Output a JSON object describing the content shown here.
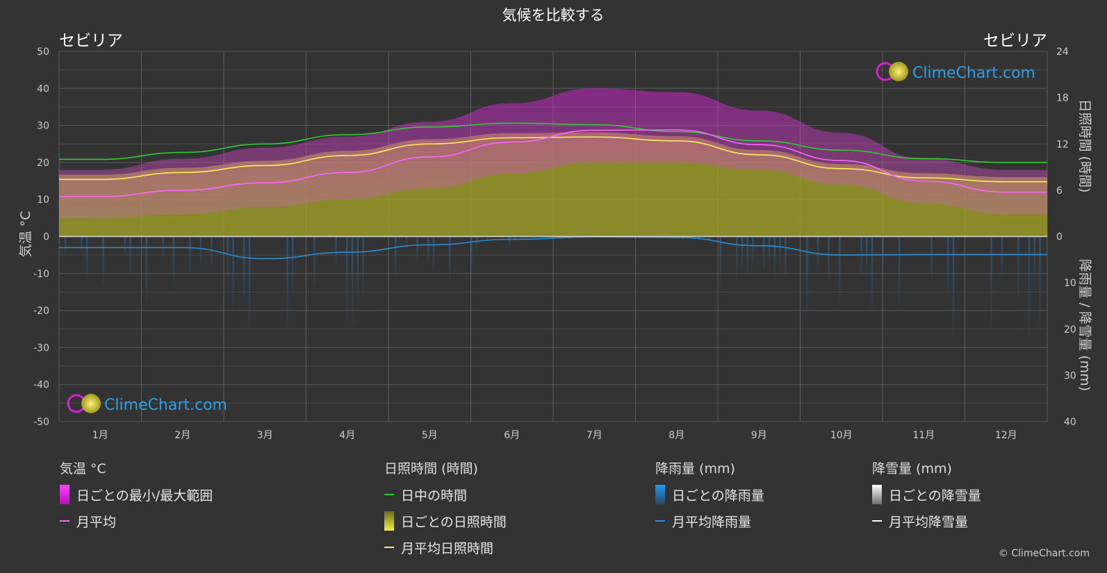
{
  "chart_data": {
    "type": "climate-combo",
    "title": "気候を比較する",
    "location_left": "セビリア",
    "location_right": "セビリア",
    "y_left": {
      "label": "気温 °C",
      "ticks": [
        50,
        40,
        30,
        20,
        10,
        0,
        -10,
        -20,
        -30,
        -40,
        -50
      ],
      "range": [
        -50,
        50
      ]
    },
    "y_right_top": {
      "label": "日照時間 (時間)",
      "ticks": [
        24,
        18,
        12,
        6,
        0
      ],
      "range": [
        0,
        24
      ]
    },
    "y_right_bottom": {
      "label": "降雨量 / 降雪量 (mm)",
      "ticks": [
        10,
        20,
        30,
        40
      ],
      "range": [
        0,
        40
      ]
    },
    "months": [
      "1月",
      "2月",
      "3月",
      "4月",
      "5月",
      "6月",
      "7月",
      "8月",
      "9月",
      "10月",
      "11月",
      "12月"
    ],
    "series": {
      "daylight_hours": [
        10.0,
        10.9,
        12.0,
        13.2,
        14.2,
        14.7,
        14.5,
        13.6,
        12.4,
        11.2,
        10.1,
        9.6
      ],
      "sunshine_hours_avg": [
        7.4,
        8.3,
        9.2,
        10.5,
        12.0,
        12.8,
        12.9,
        12.4,
        10.6,
        8.8,
        7.6,
        7.1
      ],
      "temp_avg_c": [
        10.8,
        12.5,
        14.5,
        17.3,
        21.5,
        25.5,
        28.7,
        28.8,
        24.8,
        20.5,
        15.0,
        12.0
      ],
      "temp_max_range_c": [
        18,
        21,
        24,
        27,
        31,
        36,
        40,
        39,
        34,
        28,
        21,
        18
      ],
      "temp_min_range_c": [
        5,
        6,
        8,
        10,
        13,
        17,
        20,
        20,
        18,
        14,
        9,
        6
      ],
      "rainfall_avg_mm": [
        2.4,
        2.4,
        4.8,
        3.4,
        1.8,
        0.6,
        0.1,
        0.2,
        2.0,
        4.0,
        3.9,
        3.9
      ]
    },
    "colors": {
      "daylight": "#33cc33",
      "sunshine": "#ffee55",
      "temp_avg": "#ff66ff",
      "rain": "#2b8fd6",
      "temp_range": "#e21ee2",
      "sunshine_fill": "#9a9a2a"
    }
  },
  "watermark": {
    "text": "ClimeChart.com"
  },
  "legend": {
    "temperature": {
      "header": "気温 °C",
      "items": [
        "日ごとの最小/最大範囲",
        "月平均"
      ]
    },
    "sunshine": {
      "header": "日照時間 (時間)",
      "items": [
        "日中の時間",
        "日ごとの日照時間",
        "月平均日照時間"
      ]
    },
    "rain": {
      "header": "降雨量 (mm)",
      "items": [
        "日ごとの降雨量",
        "月平均降雨量"
      ]
    },
    "snow": {
      "header": "降雪量 (mm)",
      "items": [
        "日ごとの降雪量",
        "月平均降雪量"
      ]
    }
  },
  "copyright": "© ClimeChart.com"
}
